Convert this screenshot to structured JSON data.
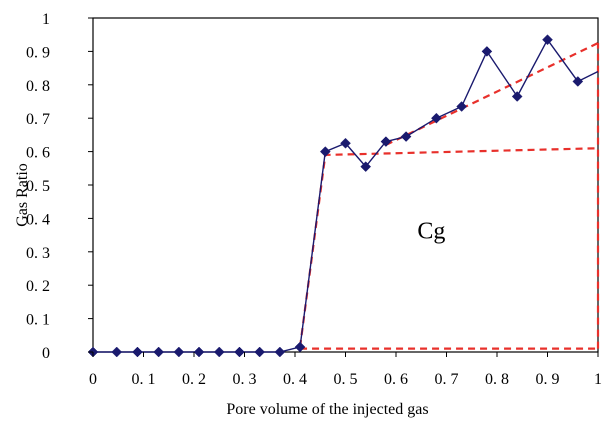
{
  "chart_data": {
    "type": "line",
    "title": "",
    "xlabel": "Pore volume of the injected gas",
    "ylabel": "Gas Ratio",
    "xlim": [
      0,
      1
    ],
    "ylim": [
      0,
      1
    ],
    "grid": false,
    "legend": "none",
    "x_ticks": [
      0,
      0.1,
      0.2,
      0.3,
      0.4,
      0.5,
      0.6,
      0.7,
      0.8,
      0.9,
      1
    ],
    "x_tick_labels": [
      "0",
      "0. 1",
      "0. 2",
      "0. 3",
      "0. 4",
      "0. 5",
      "0. 6",
      "0. 7",
      "0. 8",
      "0. 9",
      "1"
    ],
    "y_ticks": [
      0,
      0.1,
      0.2,
      0.3,
      0.4,
      0.5,
      0.6,
      0.7,
      0.8,
      0.9,
      1
    ],
    "y_tick_labels": [
      "0",
      "0. 1",
      "0. 2",
      "0. 3",
      "0. 4",
      "0. 5",
      "0. 6",
      "0. 7",
      "0. 8",
      "0. 9",
      "1"
    ],
    "series": [
      {
        "color": "#1a1a6e",
        "marker": "diamond",
        "x": [
          0,
          0.047,
          0.088,
          0.13,
          0.17,
          0.21,
          0.25,
          0.29,
          0.33,
          0.37,
          0.41,
          0.46,
          0.5,
          0.54,
          0.58,
          0.62,
          0.68,
          0.73,
          0.78,
          0.84,
          0.9,
          0.96,
          1.0
        ],
        "y": [
          0,
          0,
          0,
          0,
          0,
          0,
          0,
          0,
          0,
          0,
          0.015,
          0.6,
          0.625,
          0.555,
          0.63,
          0.645,
          0.7,
          0.735,
          0.9,
          0.765,
          0.935,
          0.81,
          0.84
        ]
      }
    ],
    "reference_lines": [
      {
        "style": "dashed",
        "color": "#e8302b",
        "x": [
          0.41,
          0.46,
          1.0
        ],
        "y": [
          0.015,
          0.59,
          0.61
        ]
      },
      {
        "style": "dashed",
        "color": "#e8302b",
        "x": [
          0.41,
          1.0
        ],
        "y": [
          0.01,
          0.01
        ]
      },
      {
        "style": "dashed",
        "color": "#e8302b",
        "x": [
          1.0,
          1.0
        ],
        "y": [
          0.01,
          0.925
        ]
      },
      {
        "style": "dashed",
        "color": "#e8302b",
        "x": [
          0.58,
          1.0
        ],
        "y": [
          0.62,
          0.925
        ]
      }
    ],
    "annotations": [
      {
        "text": "Cg",
        "x": 0.67,
        "y": 0.34
      }
    ]
  }
}
